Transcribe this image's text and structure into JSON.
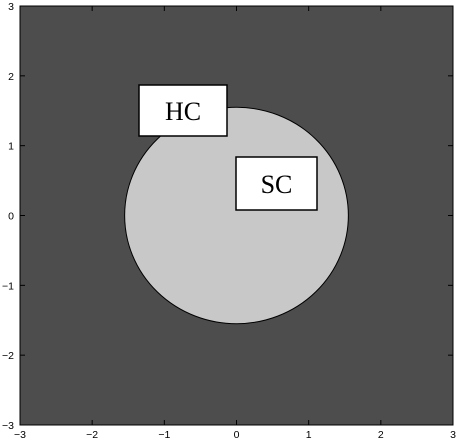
{
  "chart_data": {
    "type": "region-diagram",
    "xlim": [
      -3,
      3
    ],
    "ylim": [
      -3,
      3
    ],
    "x_ticks": [
      "−3",
      "−2",
      "−1",
      "0",
      "1",
      "2",
      "3"
    ],
    "y_ticks": [
      "3",
      "2",
      "1",
      "0",
      "−1",
      "−2",
      "−3"
    ],
    "circle": {
      "center": [
        0,
        0
      ],
      "radius": 1.55
    },
    "regions": [
      {
        "name": "HC",
        "color": "#4d4d4d"
      },
      {
        "name": "SC",
        "color": "#c8c8c8"
      }
    ],
    "grid": false
  },
  "labels": {
    "outer": "HC",
    "inner": "SC"
  },
  "colors": {
    "outer_region": "#4d4d4d",
    "inner_region": "#c8c8c8",
    "axis": "#000000"
  }
}
